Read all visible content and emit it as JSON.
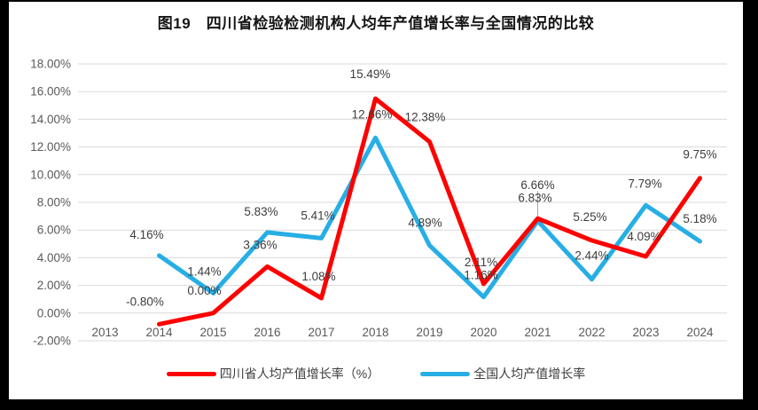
{
  "page": {
    "title": "图19　四川省检验检测机构人均年产值增长率与全国情况的比较",
    "frame_color": "#000000"
  },
  "chart_data": {
    "type": "line",
    "title": "图19　四川省检验检测机构人均年产值增长率与全国情况的比较",
    "categories": [
      "2013",
      "2014",
      "2015",
      "2016",
      "2017",
      "2018",
      "2019",
      "2020",
      "2021",
      "2022",
      "2023",
      "2024"
    ],
    "series": [
      {
        "name": "四川省人均产值增长率（%）",
        "color": "#ff0000",
        "values": [
          null,
          -0.8,
          0.0,
          3.36,
          1.08,
          15.49,
          12.38,
          2.11,
          6.83,
          5.25,
          4.09,
          9.75
        ],
        "label_offsets": [
          null,
          [
            -16,
            -21
          ],
          [
            -10,
            -21
          ],
          [
            -8,
            -20
          ],
          [
            -3,
            -20
          ],
          [
            -6,
            -23
          ],
          [
            -5,
            -23
          ],
          [
            -3,
            -20
          ],
          [
            -3,
            -19
          ],
          [
            -2,
            -22
          ],
          [
            -2,
            -18
          ],
          [
            0,
            -22
          ]
        ]
      },
      {
        "name": "全国人均产值增长率",
        "color": "#27aee5",
        "values": [
          null,
          4.16,
          1.44,
          5.83,
          5.41,
          12.66,
          4.89,
          1.16,
          6.66,
          2.44,
          7.79,
          5.18
        ],
        "label_offsets": [
          null,
          [
            -14,
            -19
          ],
          [
            -10,
            -20
          ],
          [
            -7,
            -19
          ],
          [
            -4,
            -21
          ],
          [
            -4,
            -22
          ],
          [
            -5,
            -21
          ],
          [
            -3,
            -20
          ],
          [
            0,
            -36
          ],
          [
            0,
            -22
          ],
          [
            -1,
            -20
          ],
          [
            0,
            -21
          ]
        ]
      }
    ],
    "ylim": [
      -2,
      18
    ],
    "y_tick_step": 2,
    "y_tick_labels": [
      "18.00%",
      "16.00%",
      "14.00%",
      "12.00%",
      "10.00%",
      "8.00%",
      "6.00%",
      "4.00%",
      "2.00%",
      "0.00%",
      "-2.00%"
    ],
    "value_format": "0.00%",
    "grid": "horizontal",
    "legend_position": "bottom",
    "callout_2021": {
      "category_index": 8,
      "leader_length": 31,
      "leader_color": "#a6a6a6"
    },
    "style": {
      "gridline_color": "#d9d9d9",
      "tick_text_color": "#595959",
      "data_label_color": "#3d3d3d"
    }
  }
}
